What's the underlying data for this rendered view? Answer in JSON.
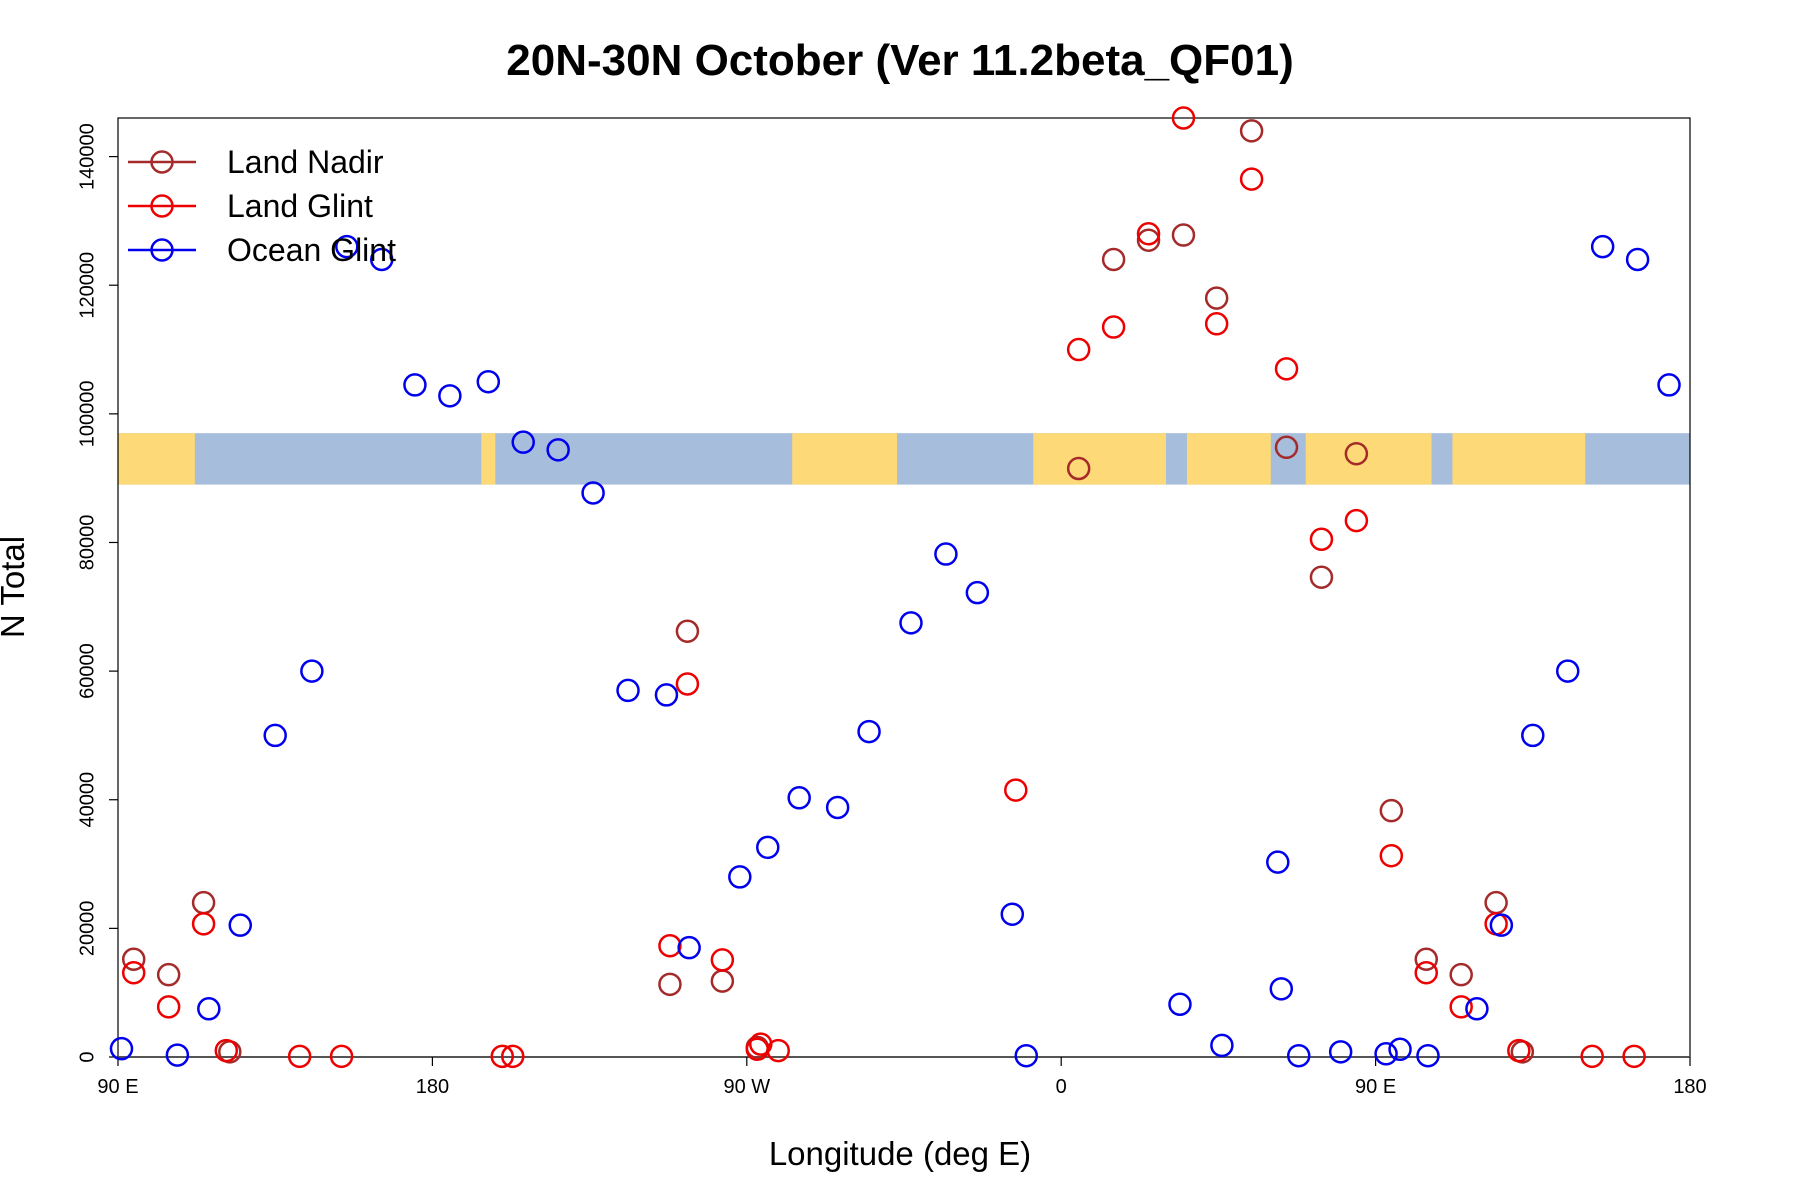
{
  "chart_data": {
    "type": "scatter",
    "title": "20N-30N October (Ver 11.2beta_QF01)",
    "xlabel": "Longitude (deg E)",
    "ylabel": "N Total",
    "xlim": [
      90,
      540
    ],
    "ylim": [
      0,
      146000
    ],
    "x_ticks": [
      {
        "value": 90,
        "label": "90 E"
      },
      {
        "value": 180,
        "label": "180"
      },
      {
        "value": 270,
        "label": "90 W"
      },
      {
        "value": 360,
        "label": "0"
      },
      {
        "value": 450,
        "label": "90 E"
      },
      {
        "value": 540,
        "label": "180"
      }
    ],
    "y_ticks": [
      {
        "value": 0,
        "label": "0"
      },
      {
        "value": 20000,
        "label": "20000"
      },
      {
        "value": 40000,
        "label": "40000"
      },
      {
        "value": 60000,
        "label": "60000"
      },
      {
        "value": 80000,
        "label": "80000"
      },
      {
        "value": 100000,
        "label": "100000"
      },
      {
        "value": 120000,
        "label": "120000"
      },
      {
        "value": 140000,
        "label": "140000"
      }
    ],
    "map_strip": {
      "description": "latitude band map 20N-30N",
      "ymin": 89000,
      "ymax": 97000,
      "ocean_color": "#a7bddc",
      "land_color": "#fed978"
    },
    "legend_position": "top-left",
    "series": [
      {
        "name": "Land Nadir",
        "color": "#a52a2a",
        "points": [
          [
            94.5,
            15200
          ],
          [
            104.5,
            12800
          ],
          [
            114.5,
            24000
          ],
          [
            122,
            800
          ],
          [
            248,
            11300
          ],
          [
            253,
            66200
          ],
          [
            263,
            11800
          ],
          [
            273,
            1500
          ],
          [
            375,
            124000
          ],
          [
            385,
            127000
          ],
          [
            395,
            127800
          ],
          [
            404.5,
            118000
          ],
          [
            414.5,
            144000
          ],
          [
            424.5,
            94800
          ],
          [
            365,
            91500
          ],
          [
            434.5,
            74600
          ],
          [
            444.5,
            93800
          ],
          [
            454.5,
            38300
          ],
          [
            464.5,
            15200
          ],
          [
            474.5,
            12800
          ],
          [
            484.5,
            24000
          ],
          [
            492,
            800
          ]
        ]
      },
      {
        "name": "Land Glint",
        "color": "#ee0000",
        "points": [
          [
            94.5,
            13100
          ],
          [
            104.5,
            7800
          ],
          [
            114.5,
            20700
          ],
          [
            121,
            1000
          ],
          [
            142,
            100
          ],
          [
            154,
            100
          ],
          [
            200,
            100
          ],
          [
            203,
            100
          ],
          [
            248,
            17300
          ],
          [
            253,
            58000
          ],
          [
            263,
            15100
          ],
          [
            273,
            1200
          ],
          [
            274,
            2000
          ],
          [
            279,
            1000
          ],
          [
            347,
            41500
          ],
          [
            365,
            110000
          ],
          [
            375,
            113500
          ],
          [
            385,
            128000
          ],
          [
            395,
            146000
          ],
          [
            404.5,
            114000
          ],
          [
            414.5,
            136500
          ],
          [
            424.5,
            107000
          ],
          [
            434.5,
            80500
          ],
          [
            444.5,
            83400
          ],
          [
            454.5,
            31300
          ],
          [
            464.5,
            13100
          ],
          [
            474.5,
            7800
          ],
          [
            484.5,
            20700
          ],
          [
            491,
            1000
          ],
          [
            512,
            100
          ],
          [
            524,
            100
          ]
        ]
      },
      {
        "name": "Ocean Glint",
        "color": "#0000ee",
        "points": [
          [
            91,
            1300
          ],
          [
            107,
            300
          ],
          [
            116,
            7500
          ],
          [
            125,
            20500
          ],
          [
            135,
            50000
          ],
          [
            145.5,
            60000
          ],
          [
            155.5,
            126000
          ],
          [
            165.5,
            124000
          ],
          [
            175,
            104500
          ],
          [
            185,
            102800
          ],
          [
            196,
            105000
          ],
          [
            206,
            95600
          ],
          [
            216,
            94400
          ],
          [
            226,
            87700
          ],
          [
            236,
            57000
          ],
          [
            247,
            56300
          ],
          [
            253.5,
            17000
          ],
          [
            268,
            28000
          ],
          [
            276,
            32600
          ],
          [
            285,
            40300
          ],
          [
            296,
            38800
          ],
          [
            305,
            50600
          ],
          [
            317,
            67500
          ],
          [
            327,
            78200
          ],
          [
            336,
            72200
          ],
          [
            346,
            22200
          ],
          [
            350,
            200
          ],
          [
            394,
            8200
          ],
          [
            406,
            1800
          ],
          [
            423,
            10600
          ],
          [
            422,
            30300
          ],
          [
            428,
            200
          ],
          [
            440,
            800
          ],
          [
            453,
            500
          ],
          [
            457,
            1200
          ],
          [
            465,
            200
          ],
          [
            479,
            7500
          ],
          [
            486,
            20500
          ],
          [
            495,
            50000
          ],
          [
            505,
            60000
          ],
          [
            515,
            126000
          ],
          [
            525,
            124000
          ],
          [
            534,
            104500
          ]
        ]
      }
    ]
  }
}
